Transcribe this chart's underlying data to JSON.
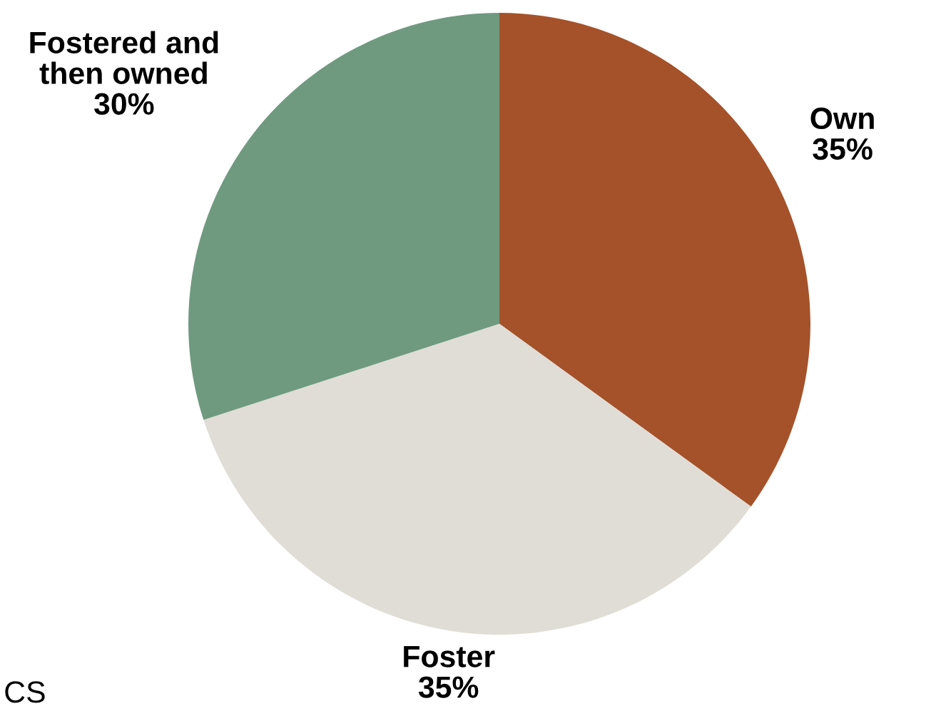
{
  "chart_data": {
    "type": "pie",
    "categories": [
      "Own",
      "Foster",
      "Fostered and then owned"
    ],
    "values": [
      35,
      35,
      30
    ],
    "colors": [
      "#a5522a",
      "#e0ddd6",
      "#6f9a80"
    ],
    "value_labels": [
      "35%",
      "35%",
      "30%"
    ],
    "annotations": [
      "CS"
    ]
  }
}
